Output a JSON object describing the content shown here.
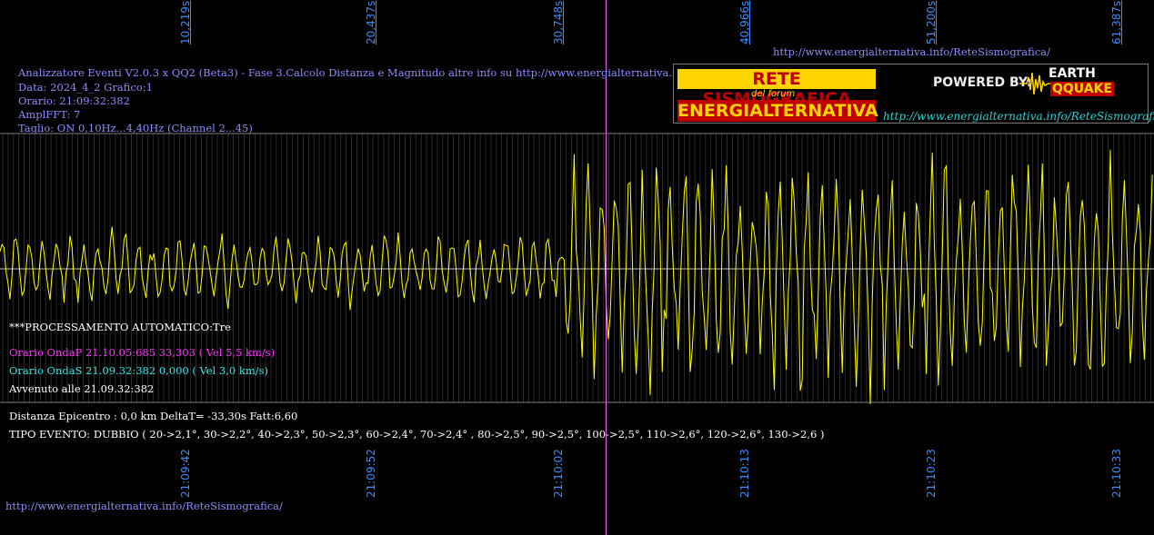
{
  "header": {
    "line1": "Analizzatore Eventi V2.0.3 x QQ2 (Beta3) - Fase 3.Calcolo Distanza e Magnitudo altre info su http://www.energialternativa.info/ReteSism",
    "line2": "Data: 2024_4_2 Grafico:1",
    "line3": "Orario: 21:09:32:382",
    "line4": "AmplFFT: 7",
    "line5": "Taglio: ON 0,10Hz...4,40Hz       (Channel 2...45)"
  },
  "top_link": "http://www.energialternativa.info/ReteSismografica/",
  "bottom_link": "http://www.energialternativa.info/ReteSismografica/",
  "logo": {
    "line1": "RETE SISMOGRAFICA",
    "line2": "del forum",
    "line3": "ENERGIALTERNATIVA",
    "powered": "POWERED BY:",
    "brand1": "EARTH",
    "brand2": "QQUAKE",
    "url": "http://www.energialternativa.info/ReteSismografica"
  },
  "processing": {
    "title": "***PROCESSAMENTO AUTOMATICO:Tre",
    "p_wave": "Orario OndaP 21.10.05:685  33,303 ( Vel 5,5 km/s)",
    "s_wave": "Orario OndaS 21.09.32:382  0,000 ( Vel 3,0 km/s)",
    "occurred": "Avvenuto alle 21.09.32:382",
    "distance": "Distanza Epicentro : 0,0 km DeltaT= -33,30s  Fatt:6,60",
    "event_type": "TIPO EVENTO: DUBBIO ( 20->2,1°, 30->2,2°, 40->2,3°, 50->2,3°, 60->2,4°, 70->2,4° , 80->2,5°, 90->2,5°, 100->2,5°, 110->2,6°, 120->2,6°, 130->2,6 )"
  },
  "colors": {
    "background": "#000000",
    "trace": "#ffff00",
    "grid": "#808080",
    "axis_label": "#3a8cff",
    "header_text": "#8c8cff",
    "p_wave": "#ff33ff",
    "s_wave": "#33e6e6",
    "marker": "#ff66ff",
    "white": "#ffffff"
  },
  "chart_data": {
    "type": "line",
    "title": "",
    "x_top_ticks": [
      "10,219s",
      "20,437s",
      "30,748s",
      "40,966s",
      "51,200s",
      "61,387s"
    ],
    "x_top_values": [
      10.219,
      20.437,
      30.748,
      40.966,
      51.2,
      61.387
    ],
    "x_bottom_ticks": [
      "21:09:42",
      "21:09:52",
      "21:10:02",
      "21:10:13",
      "21:10:23",
      "21:10:33"
    ],
    "xlim": [
      0,
      63.4
    ],
    "marker_time": 33.303,
    "trace": {
      "name": "",
      "segments": [
        {
          "t_start": 0,
          "t_end": 31.0,
          "amplitude": 0.28
        },
        {
          "t_start": 31.0,
          "t_end": 63.4,
          "amplitude": 0.9
        }
      ]
    },
    "grid": true
  }
}
